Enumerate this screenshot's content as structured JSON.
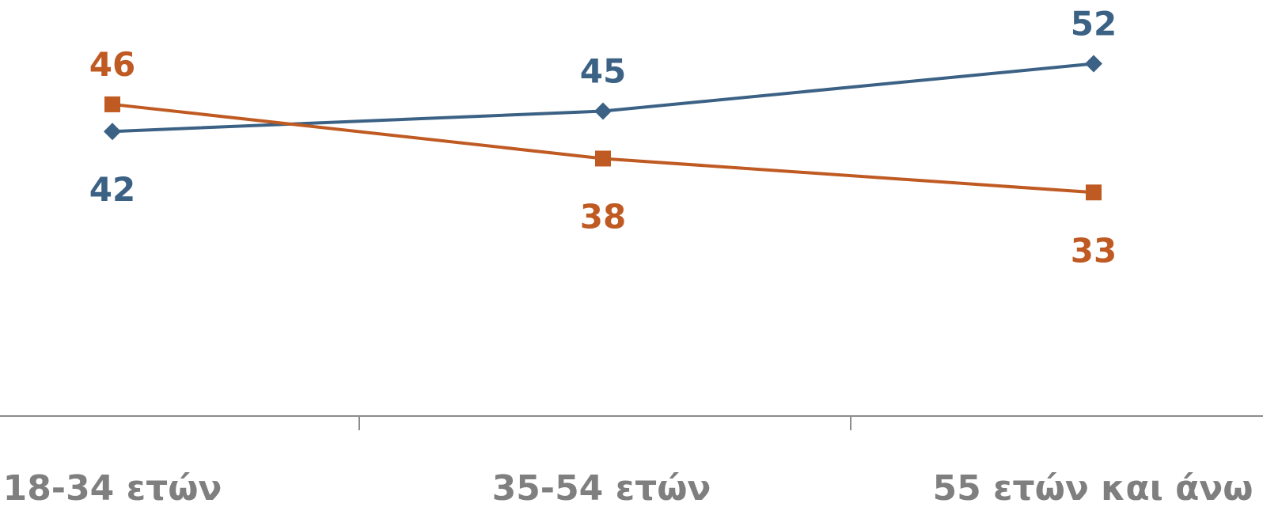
{
  "chart_data": {
    "type": "line",
    "categories": [
      "18-34 ετών",
      "35-54 ετών",
      "55 ετών και άνω"
    ],
    "series": [
      {
        "values": [
          42,
          45,
          52
        ],
        "color": "#3b6184",
        "marker": "diamond"
      },
      {
        "values": [
          46,
          38,
          33
        ],
        "color": "#c05a23",
        "marker": "square"
      }
    ],
    "title": "",
    "xlabel": "",
    "ylabel": "",
    "ylim": [
      0,
      60
    ],
    "grid": false,
    "axis_color": "#8c8c8c",
    "tick_label_color": "#7f7f7f"
  }
}
